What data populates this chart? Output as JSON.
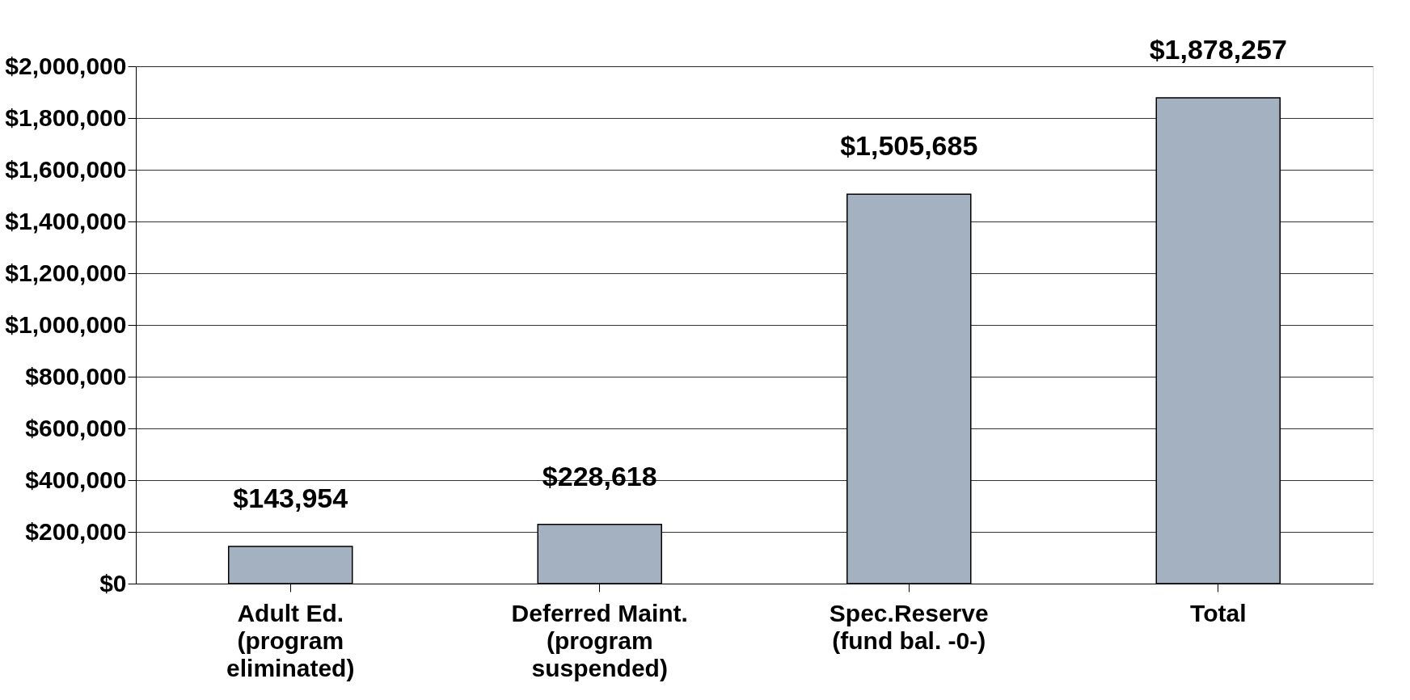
{
  "chart_data": {
    "type": "bar",
    "categories": [
      "Adult Ed.\n(program\neliminated)",
      "Deferred Maint.\n(program\nsuspended)",
      "Spec.Reserve\n(fund bal. -0-)",
      "Total"
    ],
    "values": [
      143954,
      228618,
      1505685,
      1878257
    ],
    "value_labels": [
      "$143,954",
      "$228,618",
      "$1,505,685",
      "$1,878,257"
    ],
    "color": "#a3b1c1",
    "ylim": [
      0,
      2000000
    ],
    "yticks": [
      {
        "value": 0,
        "label": "$0"
      },
      {
        "value": 200000,
        "label": "$200,000"
      },
      {
        "value": 400000,
        "label": "$400,000"
      },
      {
        "value": 600000,
        "label": "$600,000"
      },
      {
        "value": 800000,
        "label": "$800,000"
      },
      {
        "value": 1000000,
        "label": "$1,000,000"
      },
      {
        "value": 1200000,
        "label": "$1,200,000"
      },
      {
        "value": 1400000,
        "label": "$1,400,000"
      },
      {
        "value": 1600000,
        "label": "$1,600,000"
      },
      {
        "value": 1800000,
        "label": "$1,800,000"
      },
      {
        "value": 2000000,
        "label": "$2,000,000"
      }
    ],
    "grid": "y"
  }
}
